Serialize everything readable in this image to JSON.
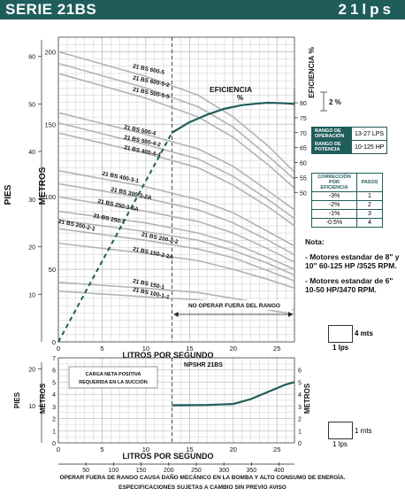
{
  "header": {
    "series": "SERIE 21BS",
    "flow": "21lps"
  },
  "chart_data": [
    {
      "type": "line",
      "xlabel": "LITROS POR SEGUNDO",
      "ylabel_left_outer": "PIES",
      "ylabel_left_inner": "METROS",
      "ylabel_right": "EFICIENCIA %",
      "xlim": [
        0,
        27
      ],
      "ylim_ft": [
        0,
        210
      ],
      "x_ticks": [
        0,
        5,
        10,
        15,
        20,
        25
      ],
      "ft_ticks": [
        0,
        50,
        100,
        150,
        200
      ],
      "m_ticks": [
        10,
        20,
        30,
        40,
        50,
        60
      ],
      "eff_ticks": [
        50,
        55,
        60,
        65,
        70,
        75,
        80
      ],
      "eff_unit": "%",
      "operating_limit_lps": 13,
      "no_operate_label": "NO OPERAR FUERA DEL RANGO",
      "efficiency_label": "EFICIENCIA",
      "efficiency_step_label": "2 %",
      "series": [
        {
          "name": "21 BS 600-5",
          "x": [
            0,
            10,
            16,
            20,
            24,
            27
          ],
          "y": [
            200,
            183,
            170,
            155,
            135,
            117
          ]
        },
        {
          "name": "21 BS 600-5-2",
          "x": [
            0,
            10,
            16,
            20,
            24,
            27
          ],
          "y": [
            192,
            175,
            162,
            148,
            128,
            112
          ]
        },
        {
          "name": "21 BS 500-5-5",
          "x": [
            0,
            10,
            16,
            20,
            24,
            27
          ],
          "y": [
            185,
            168,
            155,
            141,
            122,
            106
          ]
        },
        {
          "name": "21 BS 500-4",
          "x": [
            0,
            10,
            16,
            20,
            24,
            27
          ],
          "y": [
            158,
            143,
            133,
            121,
            104,
            91
          ]
        },
        {
          "name": "21 BS 500-4-2",
          "x": [
            0,
            10,
            16,
            20,
            24,
            27
          ],
          "y": [
            151,
            136,
            126,
            114,
            98,
            85
          ]
        },
        {
          "name": "21 BS 400-4-4",
          "x": [
            0,
            10,
            16,
            20,
            24,
            27
          ],
          "y": [
            144,
            130,
            120,
            108,
            93,
            80
          ]
        },
        {
          "name": "21 BS 400-3-1",
          "x": [
            0,
            10,
            16,
            20,
            24,
            27
          ],
          "y": [
            118,
            107,
            98,
            89,
            76,
            66
          ]
        },
        {
          "name": "21 BS 300-3-2A",
          "x": [
            0,
            10,
            16,
            20,
            24,
            27
          ],
          "y": [
            109,
            99,
            91,
            82,
            70,
            60
          ]
        },
        {
          "name": "21 BS 250-3-6A",
          "x": [
            0,
            10,
            16,
            20,
            24,
            27
          ],
          "y": [
            100,
            90,
            83,
            75,
            64,
            55
          ]
        },
        {
          "name": "21 BS 250-2",
          "x": [
            0,
            10,
            16,
            20,
            24,
            27
          ],
          "y": [
            90,
            82,
            75,
            68,
            58,
            50
          ]
        },
        {
          "name": "21 BS 200-2-1",
          "x": [
            0,
            10,
            16,
            20,
            24,
            27
          ],
          "y": [
            84,
            76,
            70,
            63,
            54,
            46
          ]
        },
        {
          "name": "21 BS 200-2-2",
          "x": [
            0,
            10,
            16,
            20,
            24,
            27
          ],
          "y": [
            78,
            70,
            64,
            58,
            49,
            42
          ]
        },
        {
          "name": "21 BS 150-2-2A",
          "x": [
            0,
            10,
            16,
            20,
            24,
            27
          ],
          "y": [
            68,
            61,
            56,
            50,
            43,
            37
          ]
        },
        {
          "name": "21 BS 150-1",
          "x": [
            0,
            10,
            16,
            20,
            24,
            27
          ],
          "y": [
            41,
            37,
            34,
            30,
            26,
            22
          ]
        },
        {
          "name": "21 BS 100-1-1",
          "x": [
            0,
            10,
            16,
            20,
            24,
            27
          ],
          "y": [
            35,
            31,
            29,
            26,
            22,
            19
          ]
        }
      ],
      "efficiency": {
        "x": [
          13,
          15,
          17,
          19,
          21,
          23,
          24,
          25,
          26,
          27
        ],
        "y": [
          70,
          73.5,
          76,
          78,
          79.2,
          79.8,
          80,
          79.9,
          79.8,
          79.6
        ]
      },
      "efficiency_dashed": {
        "x": [
          0,
          13
        ],
        "y": [
          0,
          70
        ]
      }
    },
    {
      "type": "line",
      "title": "NPSHR 21BS",
      "xlabel": "LITROS POR SEGUNDO",
      "ylabel_left_outer": "PIES",
      "ylabel_left_inner": "METROS",
      "ylabel_right": "METROS",
      "xlim": [
        0,
        27
      ],
      "ylim_m": [
        0,
        7
      ],
      "left_m_ticks": [
        0,
        1,
        2,
        3,
        4,
        5,
        6,
        7
      ],
      "left_ft_ticks": [
        10,
        20
      ],
      "right_m_ticks": [
        0,
        1,
        2,
        3,
        4,
        5,
        6
      ],
      "x_ticks": [
        0,
        5,
        10,
        15,
        20,
        25
      ],
      "gpm_ticks": [
        "50",
        "100",
        "150",
        "200",
        "250",
        "300",
        "350",
        "400"
      ],
      "note": "CARGA NETA POSITIVA REQUERIDA EN LA SUCCIÓN",
      "series": [
        {
          "name": "NPSHR",
          "x": [
            13,
            17,
            20,
            22,
            24,
            26,
            27
          ],
          "y": [
            3.1,
            3.12,
            3.2,
            3.6,
            4.2,
            4.8,
            5.0
          ]
        }
      ]
    }
  ],
  "operation_table": {
    "rows": [
      {
        "label": "RANGO DE OPERACIÓN",
        "value": "13-27 LPS"
      },
      {
        "label": "RANGO DE POTENCIA",
        "value": "10-125 HP"
      }
    ]
  },
  "correction_table": {
    "headers": [
      "CORRECCIÓN POR EFICIENCIA",
      "PASOS"
    ],
    "rows": [
      [
        "-3%",
        "1"
      ],
      [
        "-2%",
        "2"
      ],
      [
        "-1%",
        "3"
      ],
      [
        "-0.5%",
        "4"
      ]
    ]
  },
  "notes": {
    "title": "Nota:",
    "items": [
      "- Motores estandar de 8\" y 10\" 60-125 HP /3525 RPM.",
      "- Motores estandar de 6\" 10-50 HP/3470 RPM."
    ]
  },
  "scale_main": {
    "mts": "4 mts",
    "lps": "1 lps"
  },
  "scale_npsh": {
    "mts": "1 mts",
    "lps": "1 lps"
  },
  "footer": {
    "line1": "OPERAR FUERA DE RANGO CAUSA DAÑO MECÁNICO EN LA BOMBA Y ALTO CONSUMO DE ENERGÍA.",
    "line2": "ESPECIFICACIONES SUJETAS A CAMBIO SIN PREVIO AVISO"
  },
  "colors": {
    "brand": "#1f5c5a",
    "curve": "#b3b3b3",
    "grid": "#b8b8b8"
  }
}
